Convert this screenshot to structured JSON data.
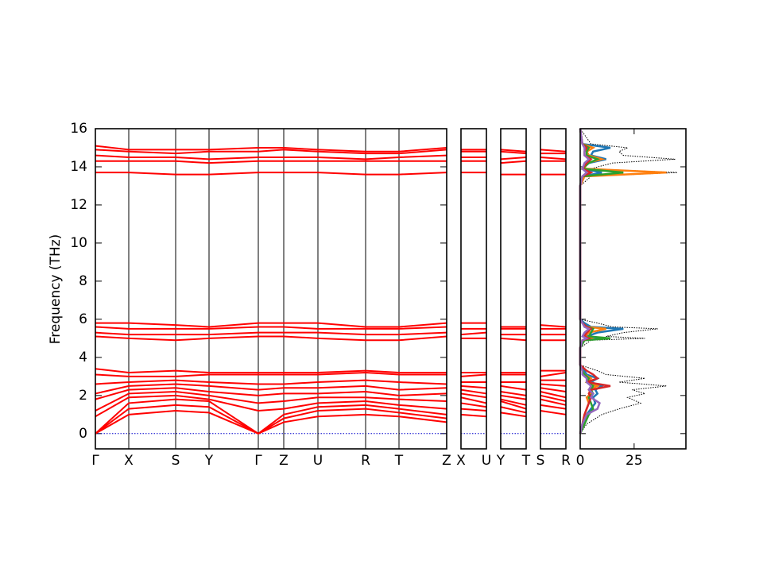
{
  "chart_data": [
    {
      "type": "band",
      "ylabel": "Frequency (THz)",
      "ylim": [
        -0.8,
        16
      ],
      "yticks": [
        0,
        2,
        4,
        6,
        8,
        10,
        12,
        14,
        16
      ],
      "xlim": [
        0,
        4.42
      ],
      "xticks": [
        {
          "value": 0,
          "label": "Γ"
        },
        {
          "value": 0.42,
          "label": "X"
        },
        {
          "value": 1.01,
          "label": "S"
        },
        {
          "value": 1.43,
          "label": "Y"
        },
        {
          "value": 2.05,
          "label": "Γ"
        },
        {
          "value": 2.37,
          "label": "Z"
        },
        {
          "value": 2.8,
          "label": "U"
        },
        {
          "value": 3.4,
          "label": "R"
        },
        {
          "value": 3.82,
          "label": "T"
        },
        {
          "value": 4.42,
          "label": "Z"
        }
      ],
      "color": "#ff0000",
      "zero_line_color": "#0000cc",
      "bands": [
        [
          0,
          1.0,
          1.2,
          1.1,
          0,
          0.6,
          0.9,
          1.0,
          0.9,
          0.6
        ],
        [
          0,
          1.3,
          1.5,
          1.4,
          0,
          0.8,
          1.2,
          1.3,
          1.1,
          0.8
        ],
        [
          0,
          1.6,
          1.8,
          1.7,
          0,
          1.0,
          1.4,
          1.5,
          1.3,
          1.0
        ],
        [
          0.9,
          1.9,
          2.0,
          1.8,
          1.2,
          1.3,
          1.6,
          1.7,
          1.5,
          1.3
        ],
        [
          1.2,
          2.1,
          2.2,
          2.0,
          1.6,
          1.7,
          1.9,
          1.9,
          1.8,
          1.7
        ],
        [
          1.8,
          2.3,
          2.4,
          2.2,
          2.0,
          2.1,
          2.1,
          2.2,
          2.0,
          2.1
        ],
        [
          2.1,
          2.5,
          2.6,
          2.5,
          2.3,
          2.4,
          2.4,
          2.5,
          2.3,
          2.4
        ],
        [
          2.6,
          2.7,
          2.8,
          2.7,
          2.6,
          2.6,
          2.7,
          2.8,
          2.7,
          2.6
        ],
        [
          3.1,
          3.0,
          3.0,
          3.1,
          3.1,
          3.1,
          3.1,
          3.2,
          3.1,
          3.1
        ],
        [
          3.4,
          3.2,
          3.3,
          3.2,
          3.2,
          3.2,
          3.2,
          3.3,
          3.2,
          3.2
        ],
        [
          5.1,
          5.0,
          4.9,
          5.0,
          5.1,
          5.1,
          5.0,
          4.9,
          4.9,
          5.1
        ],
        [
          5.3,
          5.2,
          5.2,
          5.2,
          5.3,
          5.3,
          5.3,
          5.2,
          5.2,
          5.3
        ],
        [
          5.6,
          5.5,
          5.5,
          5.5,
          5.6,
          5.6,
          5.5,
          5.5,
          5.5,
          5.6
        ],
        [
          5.8,
          5.8,
          5.7,
          5.6,
          5.8,
          5.8,
          5.8,
          5.6,
          5.6,
          5.8
        ],
        [
          13.7,
          13.7,
          13.6,
          13.6,
          13.7,
          13.7,
          13.7,
          13.6,
          13.6,
          13.7
        ],
        [
          14.3,
          14.3,
          14.3,
          14.2,
          14.3,
          14.3,
          14.3,
          14.3,
          14.3,
          14.3
        ],
        [
          14.6,
          14.5,
          14.5,
          14.4,
          14.5,
          14.5,
          14.5,
          14.4,
          14.5,
          14.6
        ],
        [
          14.9,
          14.8,
          14.7,
          14.8,
          14.8,
          14.9,
          14.8,
          14.7,
          14.7,
          14.9
        ],
        [
          15.1,
          14.9,
          14.9,
          14.9,
          15.0,
          15.0,
          14.9,
          14.8,
          14.8,
          15.0
        ]
      ]
    },
    {
      "type": "band",
      "xlim": [
        0,
        1
      ],
      "xticks": [
        {
          "value": 0,
          "label": "X"
        },
        {
          "value": 1,
          "label": "U"
        }
      ],
      "color": "#ff0000",
      "zero_line_color": "#0000cc",
      "bands": [
        [
          1.0,
          0.9
        ],
        [
          1.3,
          1.2
        ],
        [
          1.6,
          1.4
        ],
        [
          1.9,
          1.6
        ],
        [
          2.1,
          1.9
        ],
        [
          2.3,
          2.1
        ],
        [
          2.5,
          2.4
        ],
        [
          2.7,
          2.7
        ],
        [
          3.0,
          3.1
        ],
        [
          3.2,
          3.2
        ],
        [
          5.0,
          5.0
        ],
        [
          5.2,
          5.3
        ],
        [
          5.5,
          5.5
        ],
        [
          5.8,
          5.8
        ],
        [
          13.7,
          13.7
        ],
        [
          14.3,
          14.3
        ],
        [
          14.5,
          14.5
        ],
        [
          14.8,
          14.8
        ],
        [
          14.9,
          14.9
        ]
      ]
    },
    {
      "type": "band",
      "xlim": [
        0,
        1
      ],
      "xticks": [
        {
          "value": 0,
          "label": "Y"
        },
        {
          "value": 1,
          "label": "T"
        }
      ],
      "color": "#ff0000",
      "zero_line_color": "#0000cc",
      "bands": [
        [
          1.1,
          0.9
        ],
        [
          1.4,
          1.1
        ],
        [
          1.7,
          1.3
        ],
        [
          1.8,
          1.5
        ],
        [
          2.0,
          1.8
        ],
        [
          2.2,
          2.0
        ],
        [
          2.5,
          2.3
        ],
        [
          2.7,
          2.7
        ],
        [
          3.1,
          3.1
        ],
        [
          3.2,
          3.2
        ],
        [
          5.0,
          4.9
        ],
        [
          5.2,
          5.2
        ],
        [
          5.5,
          5.5
        ],
        [
          5.6,
          5.6
        ],
        [
          13.6,
          13.6
        ],
        [
          14.2,
          14.3
        ],
        [
          14.4,
          14.5
        ],
        [
          14.8,
          14.7
        ],
        [
          14.9,
          14.8
        ]
      ]
    },
    {
      "type": "band",
      "xlim": [
        0,
        1
      ],
      "xticks": [
        {
          "value": 0,
          "label": "S"
        },
        {
          "value": 1,
          "label": "R"
        }
      ],
      "color": "#ff0000",
      "zero_line_color": "#0000cc",
      "bands": [
        [
          1.2,
          1.0
        ],
        [
          1.5,
          1.3
        ],
        [
          1.8,
          1.5
        ],
        [
          2.0,
          1.7
        ],
        [
          2.2,
          1.9
        ],
        [
          2.4,
          2.2
        ],
        [
          2.6,
          2.5
        ],
        [
          2.8,
          2.8
        ],
        [
          3.0,
          3.2
        ],
        [
          3.3,
          3.3
        ],
        [
          4.9,
          4.9
        ],
        [
          5.2,
          5.2
        ],
        [
          5.5,
          5.5
        ],
        [
          5.7,
          5.6
        ],
        [
          13.6,
          13.6
        ],
        [
          14.3,
          14.3
        ],
        [
          14.5,
          14.4
        ],
        [
          14.7,
          14.7
        ],
        [
          14.9,
          14.8
        ]
      ]
    },
    {
      "type": "dos",
      "xlim": [
        0,
        49
      ],
      "xticks": [
        0,
        25
      ],
      "frequencies": [
        0,
        0.5,
        1.0,
        1.3,
        1.6,
        1.9,
        2.1,
        2.3,
        2.5,
        2.7,
        2.9,
        3.1,
        3.3,
        3.6,
        4.5,
        4.9,
        5.0,
        5.1,
        5.3,
        5.5,
        5.6,
        5.8,
        6.0,
        7,
        13,
        13.5,
        13.7,
        13.9,
        14.2,
        14.4,
        14.6,
        14.8,
        15.0,
        15.2,
        16
      ],
      "series": [
        {
          "color": "#000000",
          "style": "dotted",
          "values": [
            0,
            3,
            10,
            18,
            28,
            22,
            30,
            24,
            40,
            18,
            30,
            12,
            8,
            0,
            0,
            5,
            30,
            12,
            20,
            36,
            15,
            8,
            0,
            0,
            0,
            5,
            45,
            5,
            15,
            44,
            20,
            18,
            22,
            5,
            0
          ]
        },
        {
          "color": "#1f77b4",
          "style": "solid",
          "values": [
            0,
            1,
            3,
            5,
            7,
            6,
            8,
            7,
            10,
            5,
            8,
            3,
            2,
            0,
            0,
            1,
            12,
            3,
            8,
            20,
            5,
            2,
            0,
            0,
            0,
            1,
            10,
            1,
            4,
            12,
            5,
            6,
            14,
            1,
            0
          ]
        },
        {
          "color": "#ff7f0e",
          "style": "solid",
          "values": [
            0,
            1,
            2,
            3,
            4,
            3,
            5,
            4,
            8,
            3,
            5,
            2,
            1,
            0,
            0,
            1,
            6,
            2,
            4,
            12,
            3,
            1,
            0,
            0,
            0,
            2,
            40,
            2,
            3,
            10,
            4,
            3,
            6,
            1,
            0
          ]
        },
        {
          "color": "#2ca02c",
          "style": "solid",
          "values": [
            0,
            2,
            4,
            6,
            5,
            4,
            6,
            5,
            6,
            3,
            4,
            2,
            1,
            0,
            0,
            2,
            14,
            4,
            5,
            6,
            3,
            1,
            0,
            0,
            0,
            1,
            20,
            1,
            4,
            8,
            3,
            3,
            4,
            1,
            0
          ]
        },
        {
          "color": "#d62728",
          "style": "solid",
          "values": [
            0,
            1,
            2,
            3,
            4,
            5,
            4,
            5,
            14,
            3,
            8,
            6,
            3,
            0,
            0,
            1,
            4,
            2,
            3,
            5,
            3,
            1,
            0,
            0,
            0,
            1,
            5,
            1,
            3,
            5,
            2,
            2,
            3,
            1,
            0
          ]
        },
        {
          "color": "#9467bd",
          "style": "solid",
          "values": [
            0,
            1,
            3,
            8,
            9,
            5,
            6,
            4,
            5,
            3,
            3,
            1,
            1,
            0,
            0,
            1,
            3,
            1,
            2,
            4,
            2,
            1,
            0,
            0,
            0,
            1,
            3,
            1,
            2,
            4,
            2,
            2,
            2,
            1,
            0
          ]
        }
      ]
    }
  ]
}
